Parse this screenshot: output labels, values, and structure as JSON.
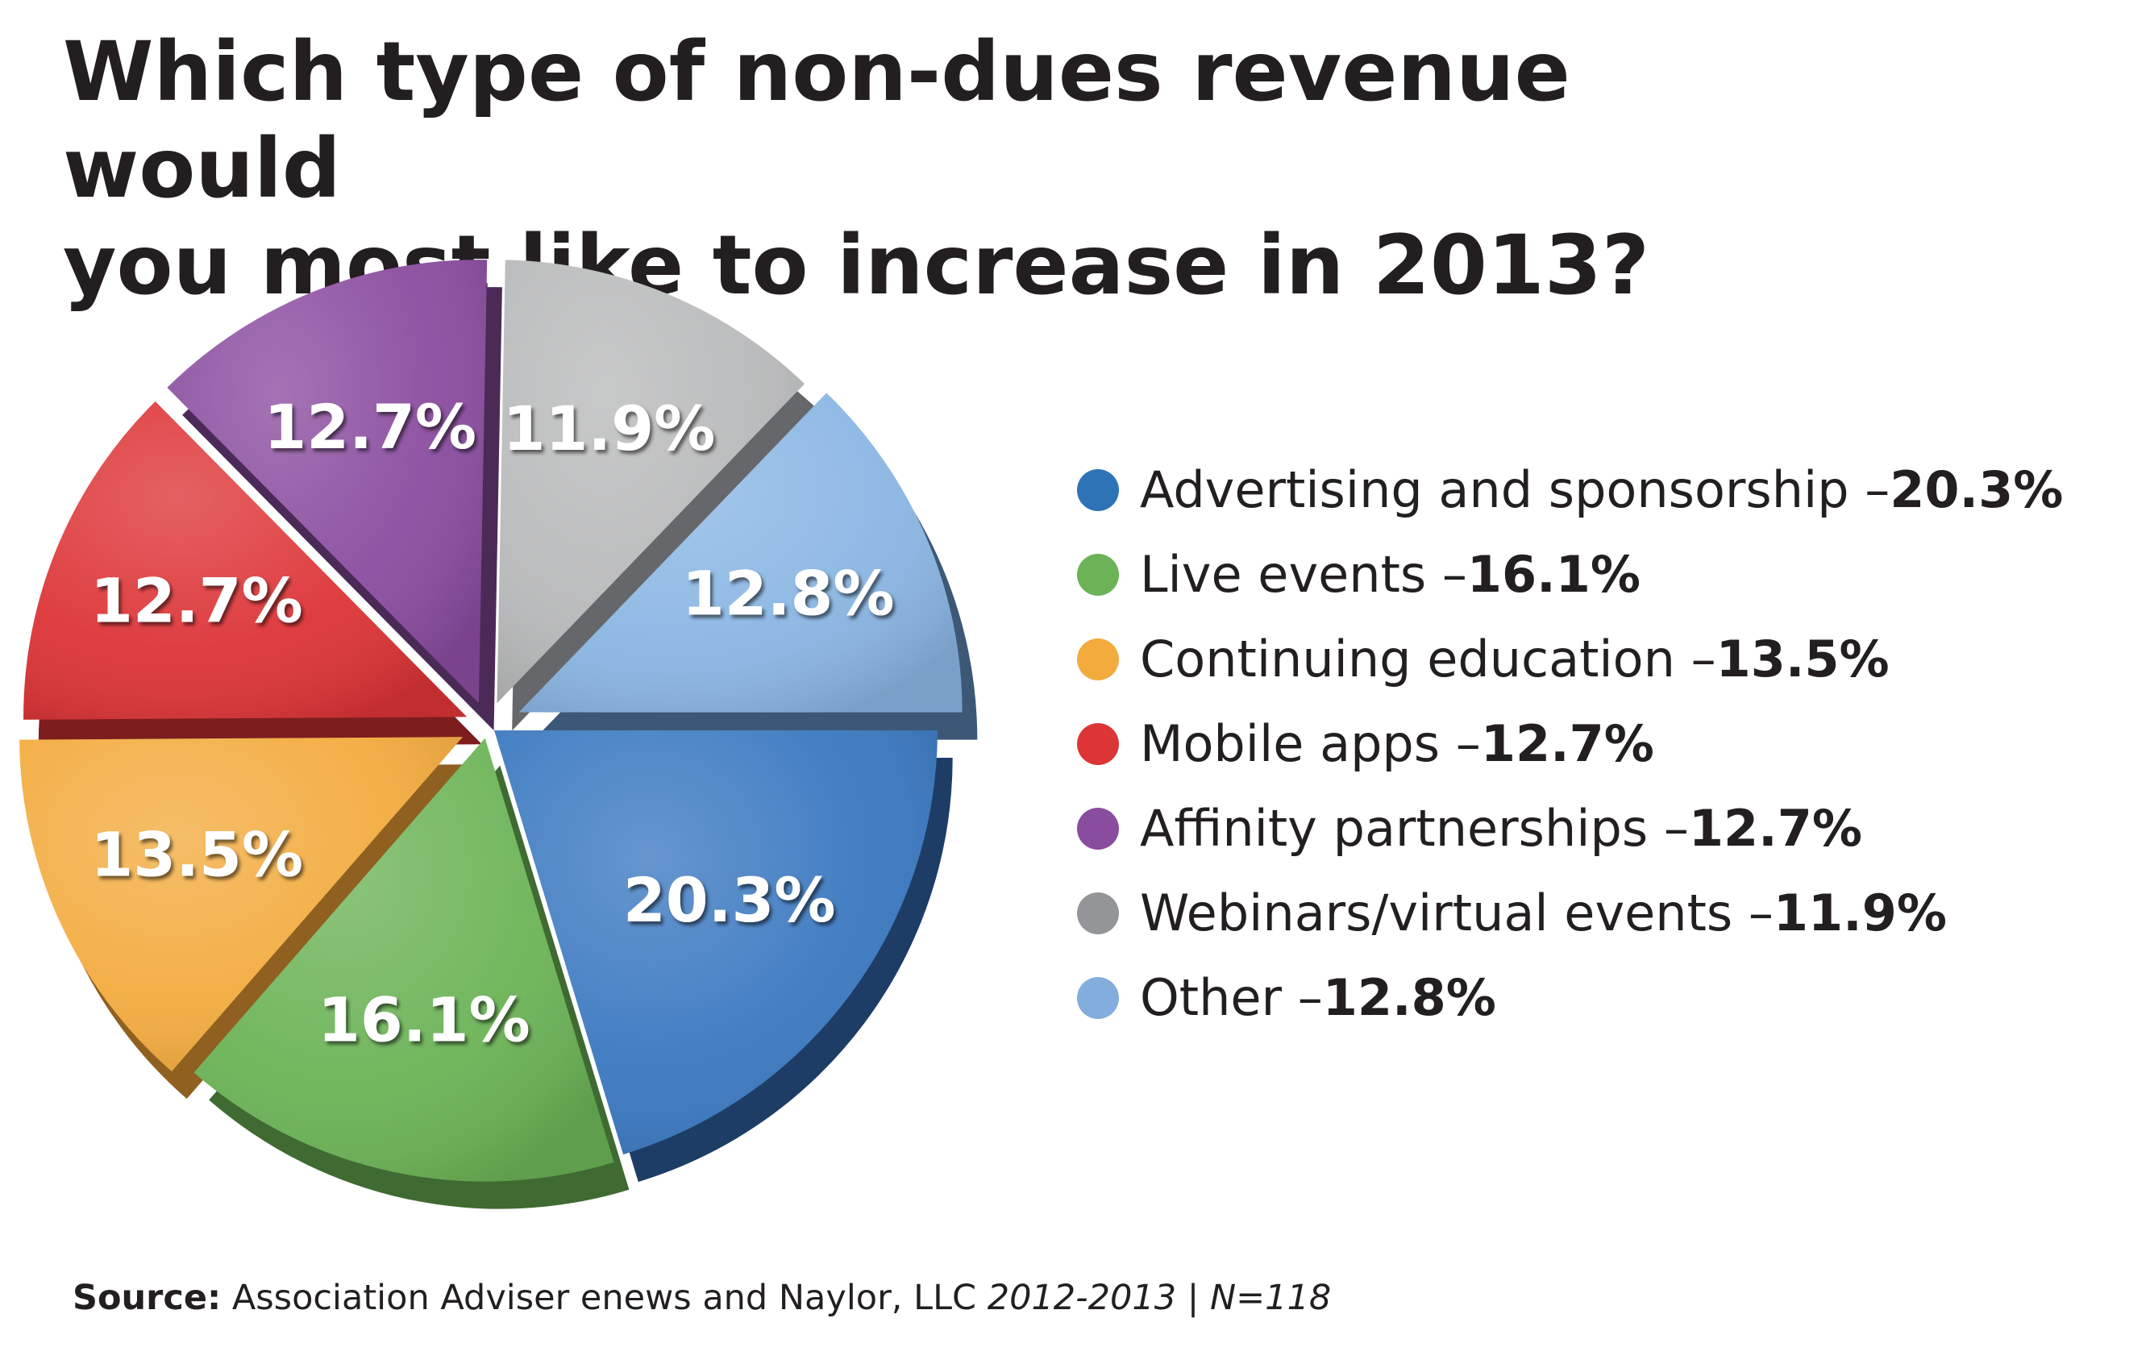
{
  "title": "Which type of non-dues revenue would you most like to increase in 2013?",
  "title_lines": [
    "Which type of non-dues revenue would",
    "you most like to increase in 2013?"
  ],
  "chart_data": {
    "type": "pie",
    "title": "Which type of non-dues revenue would you most like to increase in 2013?",
    "unit": "%",
    "legend_position": "right",
    "slices": [
      {
        "label": "Advertising and sponsorship",
        "value": 20.3,
        "label_text": "20.3%",
        "color": "#3a78c0",
        "side_color": "#1d3d66"
      },
      {
        "label": "Live events",
        "value": 16.1,
        "label_text": "16.1%",
        "color": "#6bb356",
        "side_color": "#3f6a32"
      },
      {
        "label": "Continuing education",
        "value": 13.5,
        "label_text": "13.5%",
        "color": "#f3ab3e",
        "side_color": "#8f6020"
      },
      {
        "label": "Mobile apps",
        "value": 12.7,
        "label_text": "12.7%",
        "color": "#dd3436",
        "side_color": "#7d1d1e"
      },
      {
        "label": "Affinity partnerships",
        "value": 12.7,
        "label_text": "12.7%",
        "color": "#8a4c9f",
        "side_color": "#4c2a58"
      },
      {
        "label": "Webinars/virtual events",
        "value": 11.9,
        "label_text": "11.9%",
        "color": "#b8b9ba",
        "side_color": "#66676a"
      },
      {
        "label": "Other",
        "value": 12.8,
        "label_text": "12.8%",
        "color": "#8ab6e3",
        "side_color": "#3d5877"
      }
    ]
  },
  "legend": {
    "items": [
      {
        "text": "Advertising and sponsorship – ",
        "value": "20.3%",
        "color": "#2f73b7"
      },
      {
        "text": "Live events – ",
        "value": "16.1%",
        "color": "#6bb356"
      },
      {
        "text": "Continuing education – ",
        "value": "13.5%",
        "color": "#f3ab3e"
      },
      {
        "text": "Mobile apps –  ",
        "value": "12.7%",
        "color": "#dd3436"
      },
      {
        "text": "Affinity partnerships – ",
        "value": "12.7%",
        "color": "#8a4c9f"
      },
      {
        "text": "Webinars/virtual events – ",
        "value": "11.9%",
        "color": "#939598"
      },
      {
        "text": "Other – ",
        "value": "12.8%",
        "color": "#82addd"
      }
    ]
  },
  "footer": {
    "source_label": "Source:",
    "source_text": " Association Adviser enews and Naylor, LLC  ",
    "period": "2012-2013",
    "separator": " | ",
    "sample": "N=118"
  }
}
